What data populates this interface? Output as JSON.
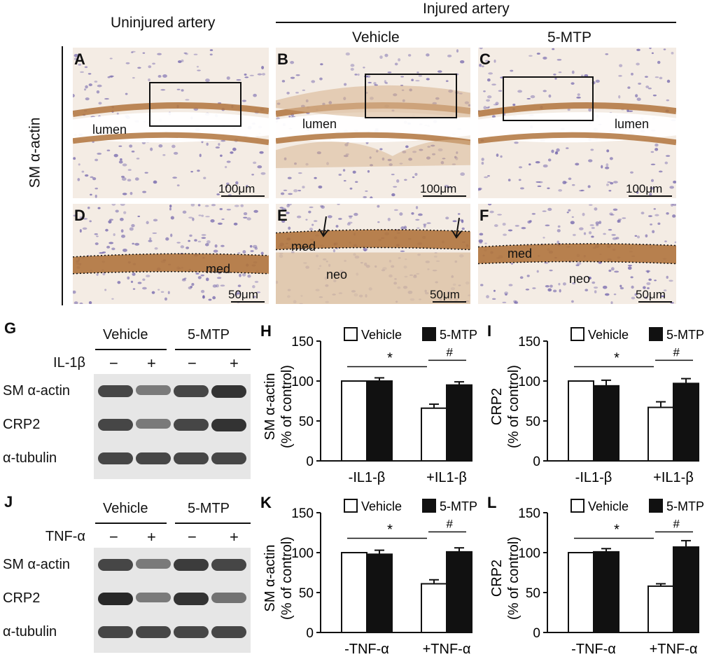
{
  "headers": {
    "uninjured": "Uninjured artery",
    "injured": "Injured artery",
    "vehicle": "Vehicle",
    "mtp": "5-MTP"
  },
  "micrographs": {
    "row_label": "SM α-actin",
    "panels": [
      {
        "letter": "A",
        "scale": "100μm",
        "tissue_labels": [
          "lumen"
        ]
      },
      {
        "letter": "B",
        "scale": "100μm",
        "tissue_labels": [
          "lumen"
        ]
      },
      {
        "letter": "C",
        "scale": "100μm",
        "tissue_labels": [
          "lumen"
        ]
      },
      {
        "letter": "D",
        "scale": "50μm",
        "tissue_labels": [
          "med"
        ]
      },
      {
        "letter": "E",
        "scale": "50μm",
        "tissue_labels": [
          "med",
          "neo"
        ]
      },
      {
        "letter": "F",
        "scale": "50μm",
        "tissue_labels": [
          "med",
          "neo"
        ]
      }
    ]
  },
  "blots": [
    {
      "letter": "G",
      "group1": "Vehicle",
      "group2": "5-MTP",
      "treatment": "IL-1β",
      "signs": [
        "−",
        "+",
        "−",
        "+"
      ],
      "rows": [
        {
          "label": "SM α-actin",
          "intensity": [
            0.85,
            0.55,
            0.85,
            0.95
          ]
        },
        {
          "label": "CRP2",
          "intensity": [
            0.85,
            0.55,
            0.85,
            0.95
          ]
        },
        {
          "label": "α-tubulin",
          "intensity": [
            0.85,
            0.85,
            0.85,
            0.85
          ]
        }
      ]
    },
    {
      "letter": "J",
      "group1": "Vehicle",
      "group2": "5-MTP",
      "treatment": "TNF-α",
      "signs": [
        "−",
        "+",
        "−",
        "+"
      ],
      "rows": [
        {
          "label": "SM α-actin",
          "intensity": [
            0.85,
            0.55,
            0.9,
            0.85
          ]
        },
        {
          "label": "CRP2",
          "intensity": [
            1.0,
            0.55,
            0.95,
            0.6
          ]
        },
        {
          "label": "α-tubulin",
          "intensity": [
            0.85,
            0.85,
            0.85,
            0.85
          ]
        }
      ]
    }
  ],
  "chart_data": [
    {
      "id": "H",
      "type": "bar",
      "ylabel_line1": "SM α-actin",
      "ylabel_line2": "(% of control)",
      "categories": [
        "-IL1-β",
        "+IL1-β"
      ],
      "ylim": [
        0,
        150
      ],
      "yticks": [
        "0",
        "50",
        "100",
        "150"
      ],
      "series": [
        {
          "name": "Vehicle",
          "values": [
            100,
            66
          ],
          "errors": [
            0,
            5
          ]
        },
        {
          "name": "5-MTP",
          "values": [
            100,
            95
          ],
          "errors": [
            4,
            4
          ]
        }
      ],
      "sig_star": "*",
      "sig_hash": "#"
    },
    {
      "id": "I",
      "type": "bar",
      "ylabel_line1": "CRP2",
      "ylabel_line2": "(% of control)",
      "categories": [
        "-IL1-β",
        "+IL1-β"
      ],
      "ylim": [
        0,
        150
      ],
      "yticks": [
        "0",
        "50",
        "100",
        "150"
      ],
      "series": [
        {
          "name": "Vehicle",
          "values": [
            100,
            67
          ],
          "errors": [
            0,
            7
          ]
        },
        {
          "name": "5-MTP",
          "values": [
            94,
            97
          ],
          "errors": [
            7,
            6
          ]
        }
      ],
      "sig_star": "*",
      "sig_hash": "#"
    },
    {
      "id": "K",
      "type": "bar",
      "ylabel_line1": "SM α-actin",
      "ylabel_line2": "(% of control)",
      "categories": [
        "-TNF-α",
        "+TNF-α"
      ],
      "ylim": [
        0,
        150
      ],
      "yticks": [
        "0",
        "50",
        "100",
        "150"
      ],
      "series": [
        {
          "name": "Vehicle",
          "values": [
            100,
            61
          ],
          "errors": [
            0,
            5
          ]
        },
        {
          "name": "5-MTP",
          "values": [
            98,
            101
          ],
          "errors": [
            5,
            5
          ]
        }
      ],
      "sig_star": "*",
      "sig_hash": "#"
    },
    {
      "id": "L",
      "type": "bar",
      "ylabel_line1": "CRP2",
      "ylabel_line2": "(% of control)",
      "categories": [
        "-TNF-α",
        "+TNF-α"
      ],
      "ylim": [
        0,
        150
      ],
      "yticks": [
        "0",
        "50",
        "100",
        "150"
      ],
      "series": [
        {
          "name": "Vehicle",
          "values": [
            100,
            58
          ],
          "errors": [
            0,
            3
          ]
        },
        {
          "name": "5-MTP",
          "values": [
            101,
            107
          ],
          "errors": [
            4,
            8
          ]
        }
      ],
      "sig_star": "*",
      "sig_hash": "#"
    }
  ],
  "colors": {
    "vehicle_fill": "#ffffff",
    "mtp_fill": "#111111",
    "stain_brown": "#b0743d",
    "stain_purple": "#6a5ca8",
    "tissue_bg": "#f4ece4"
  }
}
